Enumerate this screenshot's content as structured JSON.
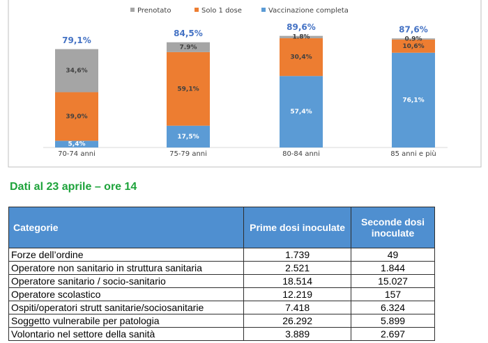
{
  "chart_data": {
    "type": "stacked_bar",
    "categories": [
      "70-74 anni",
      "75-79 anni",
      "80-84 anni",
      "85 anni e più"
    ],
    "series": [
      {
        "name": "Vaccinazione completa",
        "color": "#5b9bd5",
        "values": [
          5.4,
          17.5,
          57.4,
          76.1
        ],
        "value_labels": [
          "5,4%",
          "17,5%",
          "57,4%",
          "76,1%"
        ]
      },
      {
        "name": "Solo 1 dose",
        "color": "#ed7d31",
        "values": [
          39.0,
          59.1,
          30.4,
          10.6
        ],
        "value_labels": [
          "39,0%",
          "59,1%",
          "30,4%",
          "10,6%"
        ]
      },
      {
        "name": "Prenotato",
        "color": "#a5a5a5",
        "values": [
          34.6,
          7.9,
          1.8,
          0.9
        ],
        "value_labels": [
          "34,6%",
          "7.9%",
          "1.8%",
          "0.9%"
        ]
      }
    ],
    "totals": {
      "values": [
        79.1,
        84.5,
        89.6,
        87.6
      ],
      "value_labels": [
        "79,1%",
        "84,5%",
        "89,6%",
        "87,6%"
      ]
    },
    "ylim": [
      0,
      100
    ]
  },
  "section_title": "Dati al 23 aprile – ore 14",
  "table": {
    "header": [
      "Categorie",
      "Prime dosi inoculate",
      "Seconde dosi inoculate"
    ],
    "rows": [
      [
        "Forze dell’ordine",
        "1.739",
        "49"
      ],
      [
        "Operatore non sanitario in struttura sanitaria",
        "2.521",
        "1.844"
      ],
      [
        "Operatore sanitario / socio-sanitario",
        "18.514",
        "15.027"
      ],
      [
        "Operatore scolastico",
        "12.219",
        "157"
      ],
      [
        "Ospiti/operatori strutt sanitarie/sociosanitarie",
        "7.418",
        "6.324"
      ],
      [
        "Soggetto vulnerabile per patologia",
        "26.292",
        "5.899"
      ],
      [
        "Volontario nel settore della sanità",
        "3.889",
        "2.697"
      ]
    ]
  }
}
